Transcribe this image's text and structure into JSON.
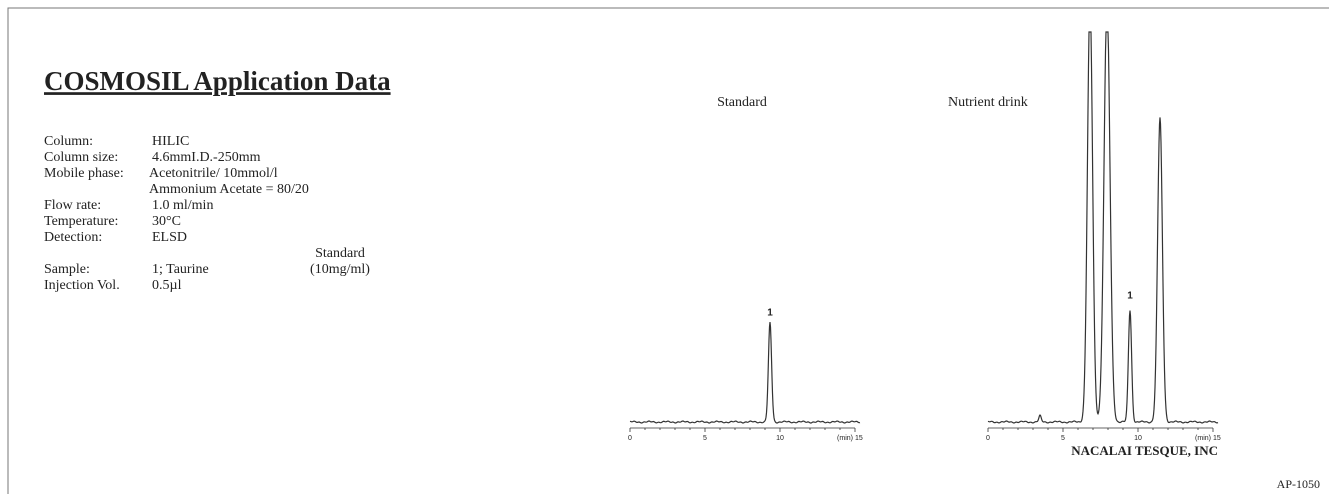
{
  "title": "COSMOSIL Application Data",
  "conditions": [
    {
      "label": "Column:",
      "lines": [
        "HILIC"
      ]
    },
    {
      "label": "Column size:",
      "lines": [
        "4.6mmI.D.-250mm"
      ]
    },
    {
      "label": "Mobile phase:",
      "lines": [
        "Acetonitrile/ 10mmol/l",
        "Ammonium Acetate = 80/20"
      ]
    },
    {
      "label": "Flow rate:",
      "lines": [
        "1.0 ml/min"
      ]
    },
    {
      "label": "Temperature:",
      "lines": [
        "30°C"
      ]
    },
    {
      "label": "Detection:",
      "lines": [
        "ELSD"
      ]
    }
  ],
  "sample": {
    "header": "Standard",
    "label": "Sample:",
    "value": "1; Taurine",
    "concentration": "(10mg/ml)"
  },
  "injection": {
    "label": "Injection Vol.",
    "value": "0.5µl"
  },
  "chromatograms": [
    {
      "title": "Standard",
      "peak_label": "1",
      "xticks": [
        "0",
        "5",
        "10",
        "15"
      ],
      "x_unit": "(min)"
    },
    {
      "title": "Nutrient drink",
      "peak_label": "1",
      "xticks": [
        "0",
        "5",
        "10",
        "15"
      ],
      "x_unit": "(min)"
    }
  ],
  "footer": {
    "company": "NACALAI TESQUE, INC",
    "code": "AP-1050"
  }
}
